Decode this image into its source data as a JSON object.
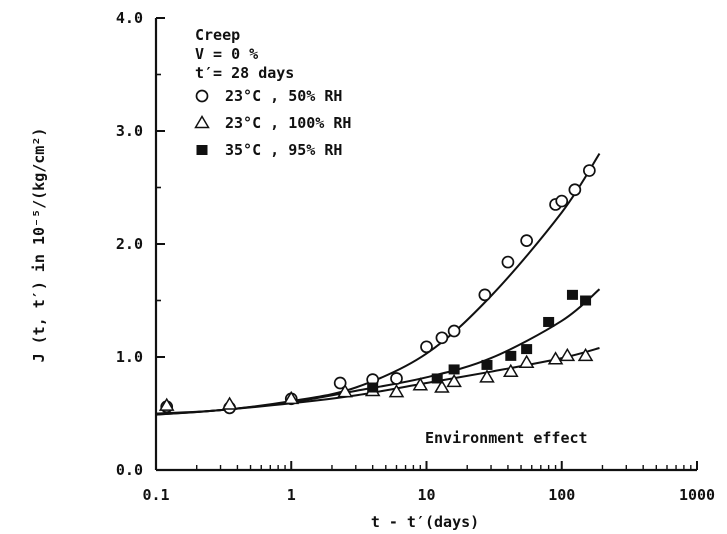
{
  "chart_data": {
    "type": "scatter",
    "title": "",
    "xlabel": "t - t′(days)",
    "ylabel": "J (t, t′) in 10⁻⁵/(kg/cm²)",
    "x_scale": "log",
    "xlim": [
      0.1,
      1000
    ],
    "ylim": [
      0.0,
      4.0
    ],
    "x_ticks": [
      {
        "value": 0.1,
        "label": "0.1"
      },
      {
        "value": 1,
        "label": "1"
      },
      {
        "value": 10,
        "label": "10"
      },
      {
        "value": 100,
        "label": "100"
      },
      {
        "value": 1000,
        "label": "1000"
      }
    ],
    "y_ticks": [
      {
        "value": 0.0,
        "label": "0.0"
      },
      {
        "value": 1.0,
        "label": "1.0"
      },
      {
        "value": 2.0,
        "label": "2.0"
      },
      {
        "value": 3.0,
        "label": "3.0"
      },
      {
        "value": 4.0,
        "label": "4.0"
      }
    ],
    "legend": {
      "placement": "top-left",
      "header": [
        "Creep",
        "V = 0 %",
        "t′= 28 days"
      ],
      "entries": [
        {
          "marker": "circle",
          "text": "23°C ,  50% RH"
        },
        {
          "marker": "triangle",
          "text": "23°C , 100% RH"
        },
        {
          "marker": "square",
          "text": "35°C ,  95% RH"
        }
      ]
    },
    "annotation": "Environment effect",
    "series": [
      {
        "marker": "circle",
        "points": [
          [
            0.12,
            0.56
          ],
          [
            0.35,
            0.55
          ],
          [
            1.0,
            0.63
          ],
          [
            2.3,
            0.77
          ],
          [
            4.0,
            0.8
          ],
          [
            6.0,
            0.81
          ],
          [
            10.0,
            1.09
          ],
          [
            13.0,
            1.17
          ],
          [
            16.0,
            1.23
          ],
          [
            27.0,
            1.55
          ],
          [
            40.0,
            1.84
          ],
          [
            55.0,
            2.03
          ],
          [
            90.0,
            2.35
          ],
          [
            100.0,
            2.38
          ],
          [
            125.0,
            2.48
          ],
          [
            160.0,
            2.65
          ]
        ],
        "fit": [
          [
            0.1,
            0.5
          ],
          [
            0.3,
            0.53
          ],
          [
            1.0,
            0.61
          ],
          [
            3.0,
            0.73
          ],
          [
            10.0,
            1.03
          ],
          [
            30.0,
            1.54
          ],
          [
            100.0,
            2.28
          ],
          [
            190.0,
            2.8
          ]
        ]
      },
      {
        "marker": "triangle",
        "points": [
          [
            0.12,
            0.57
          ],
          [
            0.35,
            0.58
          ],
          [
            1.0,
            0.63
          ],
          [
            2.5,
            0.69
          ],
          [
            4.0,
            0.7
          ],
          [
            6.0,
            0.69
          ],
          [
            9.0,
            0.75
          ],
          [
            13.0,
            0.73
          ],
          [
            16.0,
            0.78
          ],
          [
            28.0,
            0.82
          ],
          [
            42.0,
            0.87
          ],
          [
            55.0,
            0.95
          ],
          [
            90.0,
            0.98
          ],
          [
            110.0,
            1.01
          ],
          [
            150.0,
            1.01
          ]
        ],
        "fit": [
          [
            0.1,
            0.49
          ],
          [
            0.3,
            0.53
          ],
          [
            1.0,
            0.59
          ],
          [
            3.0,
            0.66
          ],
          [
            10.0,
            0.77
          ],
          [
            30.0,
            0.87
          ],
          [
            100.0,
            0.99
          ],
          [
            190.0,
            1.08
          ]
        ]
      },
      {
        "marker": "square",
        "points": [
          [
            4.0,
            0.73
          ],
          [
            12.0,
            0.81
          ],
          [
            16.0,
            0.89
          ],
          [
            28.0,
            0.93
          ],
          [
            42.0,
            1.01
          ],
          [
            55.0,
            1.07
          ],
          [
            80.0,
            1.31
          ],
          [
            120.0,
            1.55
          ],
          [
            150.0,
            1.5
          ]
        ],
        "fit": [
          [
            0.1,
            0.49
          ],
          [
            0.3,
            0.53
          ],
          [
            1.0,
            0.6
          ],
          [
            3.0,
            0.7
          ],
          [
            10.0,
            0.82
          ],
          [
            30.0,
            0.99
          ],
          [
            100.0,
            1.32
          ],
          [
            190.0,
            1.6
          ]
        ]
      }
    ]
  }
}
